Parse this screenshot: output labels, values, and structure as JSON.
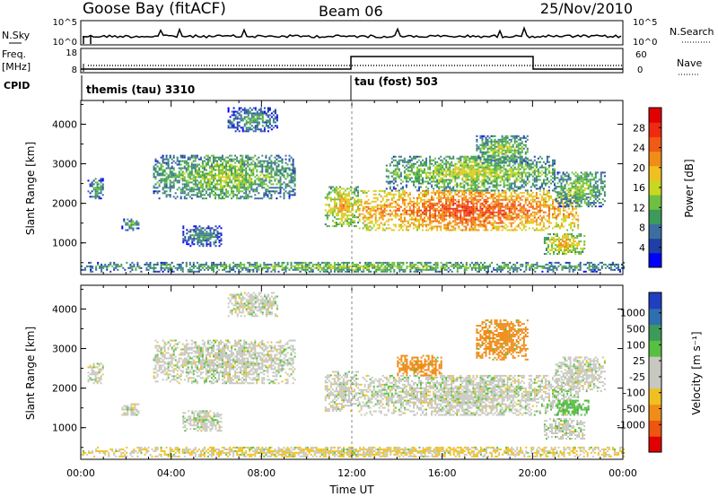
{
  "header": {
    "site": "Goose Bay (fitACF)",
    "beam": "Beam 06",
    "date": "25/Nov/2010"
  },
  "noise_panel": {
    "left_label": "N.Sky",
    "left_ticks": [
      "10^5",
      "10^0"
    ],
    "right_label": "N.Search",
    "right_ticks": [
      "10^5",
      "10^0"
    ]
  },
  "freq_panel": {
    "left_label_1": "Freq.",
    "left_label_2": "[MHz]",
    "left_ticks": [
      "18",
      "8"
    ],
    "right_label": "Nave",
    "right_ticks": [
      "60",
      "0"
    ]
  },
  "cpid": {
    "label": "CPID",
    "modes": [
      {
        "name": "themis (tau) 3310",
        "start_hour": 0
      },
      {
        "name": "tau (fost) 503",
        "start_hour": 12
      }
    ]
  },
  "chart_data": [
    {
      "type": "heatmap",
      "panel": "power",
      "ylabel": "Slant Range [km]",
      "yticks": [
        "1000",
        "2000",
        "3000",
        "4000"
      ],
      "ylim": [
        200,
        4600
      ],
      "xlim": [
        0,
        24
      ],
      "colorbar": {
        "label": "Power [dB]",
        "ticks": [
          "4",
          "8",
          "12",
          "16",
          "20",
          "24",
          "28"
        ],
        "colors": [
          "#0000ff",
          "#1f3fa8",
          "#3c6fa0",
          "#3c9a5a",
          "#6ec040",
          "#c8d820",
          "#f0c020",
          "#f08c18",
          "#f05a14",
          "#ee2a10",
          "#e00000"
        ]
      },
      "echo_regions": [
        {
          "t0": 0.0,
          "t1": 24.0,
          "r0": 250,
          "r1": 500,
          "level": 8
        },
        {
          "t0": 0.3,
          "t1": 1.0,
          "r0": 2100,
          "r1": 2600,
          "level": 6
        },
        {
          "t0": 1.8,
          "t1": 2.6,
          "r0": 1300,
          "r1": 1600,
          "level": 6
        },
        {
          "t0": 3.2,
          "t1": 9.5,
          "r0": 2100,
          "r1": 3200,
          "level": 9
        },
        {
          "t0": 4.5,
          "t1": 6.2,
          "r0": 900,
          "r1": 1400,
          "level": 5
        },
        {
          "t0": 6.5,
          "t1": 8.7,
          "r0": 3800,
          "r1": 4400,
          "level": 5
        },
        {
          "t0": 10.8,
          "t1": 12.3,
          "r0": 1400,
          "r1": 2400,
          "level": 14
        },
        {
          "t0": 12.3,
          "t1": 22.0,
          "r0": 1300,
          "r1": 2300,
          "level": 20
        },
        {
          "t0": 13.5,
          "t1": 21.0,
          "r0": 2300,
          "r1": 3200,
          "level": 10
        },
        {
          "t0": 17.5,
          "t1": 19.8,
          "r0": 3000,
          "r1": 3700,
          "level": 9
        },
        {
          "t0": 20.5,
          "t1": 22.3,
          "r0": 700,
          "r1": 1200,
          "level": 14
        },
        {
          "t0": 21.0,
          "t1": 23.2,
          "r0": 1900,
          "r1": 2800,
          "level": 9
        }
      ]
    },
    {
      "type": "heatmap",
      "panel": "velocity",
      "ylabel": "Slant Range [km]",
      "yticks": [
        "1000",
        "2000",
        "3000",
        "4000"
      ],
      "ylim": [
        200,
        4600
      ],
      "xlim": [
        0,
        24
      ],
      "xticks": [
        "00:00",
        "04:00",
        "08:00",
        "12:00",
        "16:00",
        "20:00",
        "00:00"
      ],
      "xlabel": "Time UT",
      "colorbar": {
        "label": "Velocity [m s⁻¹]",
        "ticks": [
          "1000",
          "500",
          "100",
          "25",
          "-25",
          "-100",
          "-500",
          "-1000"
        ],
        "colors": [
          "#1f3fbf",
          "#2f6fb0",
          "#3c9a5a",
          "#58c040",
          "#c8c8c0",
          "#c8c8c0",
          "#f0c020",
          "#f08c18",
          "#ee5510",
          "#e00000"
        ]
      },
      "echo_regions": [
        {
          "t0": 0.0,
          "t1": 24.0,
          "r0": 250,
          "r1": 500,
          "vel": -30
        },
        {
          "t0": 0.3,
          "t1": 1.0,
          "r0": 2100,
          "r1": 2600,
          "vel": 0
        },
        {
          "t0": 1.8,
          "t1": 2.6,
          "r0": 1300,
          "r1": 1600,
          "vel": 0
        },
        {
          "t0": 3.2,
          "t1": 9.5,
          "r0": 2100,
          "r1": 3200,
          "vel": 0
        },
        {
          "t0": 4.5,
          "t1": 6.2,
          "r0": 900,
          "r1": 1400,
          "vel": 0
        },
        {
          "t0": 6.5,
          "t1": 8.7,
          "r0": 3800,
          "r1": 4400,
          "vel": 0
        },
        {
          "t0": 10.8,
          "t1": 12.3,
          "r0": 1400,
          "r1": 2400,
          "vel": 0
        },
        {
          "t0": 12.3,
          "t1": 22.0,
          "r0": 1300,
          "r1": 2300,
          "vel": 0
        },
        {
          "t0": 14.0,
          "t1": 16.0,
          "r0": 2300,
          "r1": 2800,
          "vel": -200
        },
        {
          "t0": 17.5,
          "t1": 19.8,
          "r0": 2700,
          "r1": 3700,
          "vel": -250
        },
        {
          "t0": 20.5,
          "t1": 22.3,
          "r0": 700,
          "r1": 1200,
          "vel": 0
        },
        {
          "t0": 21.0,
          "t1": 22.5,
          "r0": 1300,
          "r1": 1700,
          "vel": 80
        },
        {
          "t0": 21.0,
          "t1": 23.2,
          "r0": 1900,
          "r1": 2800,
          "vel": 0
        }
      ]
    }
  ]
}
